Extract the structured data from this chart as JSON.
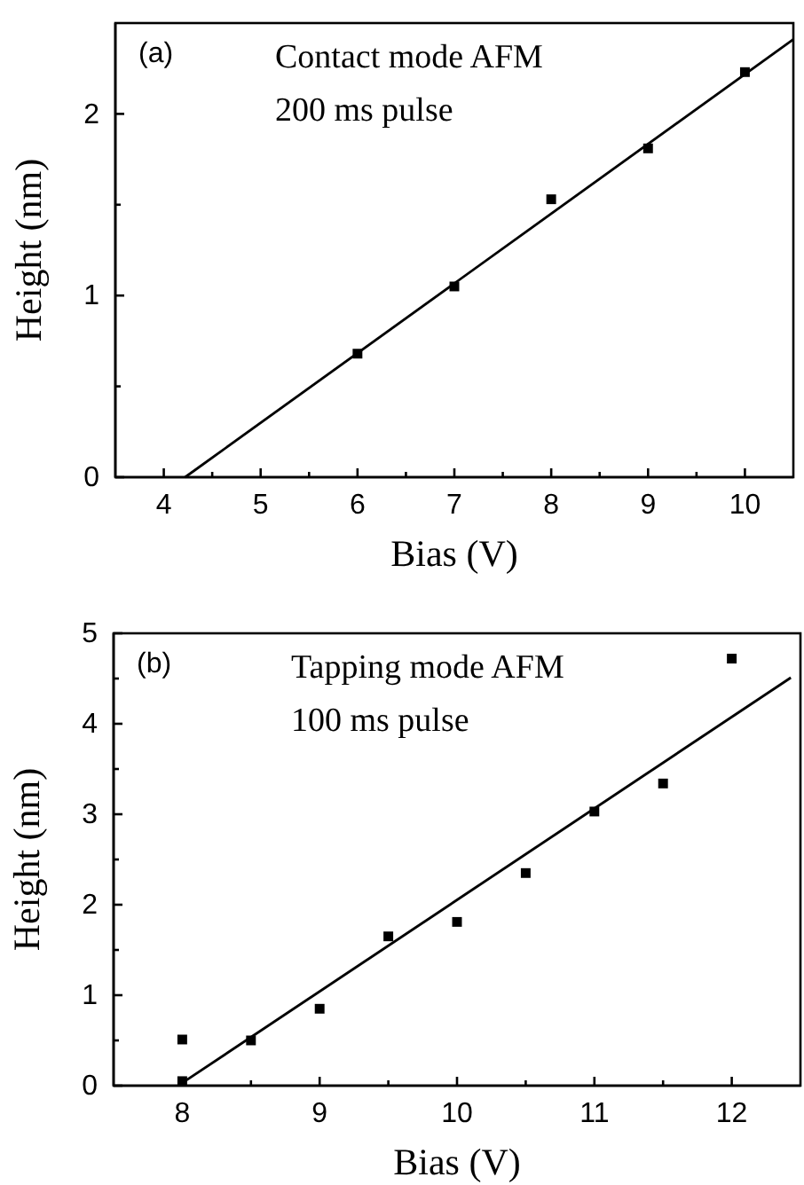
{
  "chart_data": [
    {
      "type": "scatter",
      "xlabel": "Bias (V)",
      "ylabel": "Height (nm)",
      "annotations": [
        "(a)",
        "Contact mode AFM",
        "200 ms pulse"
      ],
      "xlim": [
        3.5,
        10.5
      ],
      "ylim": [
        0,
        2.5
      ],
      "xticks": [
        4,
        {
          "value": 4.5,
          "label": null
        },
        5,
        {
          "value": 5.5,
          "label": null
        },
        6,
        {
          "value": 6.5,
          "label": null
        },
        7,
        {
          "value": 7.5,
          "label": null
        },
        8,
        {
          "value": 8.5,
          "label": null
        },
        9,
        {
          "value": 9.5,
          "label": null
        },
        10
      ],
      "yticks": [
        0,
        {
          "value": 0.5,
          "label": null
        },
        1,
        {
          "value": 1.5,
          "label": null
        },
        2
      ],
      "series": [
        {
          "marker": "square",
          "color": "#000000",
          "x": [
            6,
            7,
            8,
            9,
            10
          ],
          "values": [
            0.68,
            1.05,
            1.53,
            1.81,
            2.23
          ]
        },
        {
          "type": "line",
          "color": "#000000",
          "x": [
            4.22,
            10.5
          ],
          "values": [
            0,
            2.41
          ]
        }
      ]
    },
    {
      "type": "scatter",
      "xlabel": "Bias (V)",
      "ylabel": "Height (nm)",
      "annotations": [
        "(b)",
        "Tapping mode AFM",
        "100 ms pulse"
      ],
      "xlim": [
        7.5,
        12.5
      ],
      "ylim": [
        0,
        5
      ],
      "xticks": [
        8,
        {
          "value": 8.5,
          "label": null
        },
        9,
        {
          "value": 9.5,
          "label": null
        },
        10,
        {
          "value": 10.5,
          "label": null
        },
        11,
        {
          "value": 11.5,
          "label": null
        },
        12
      ],
      "yticks": [
        0,
        {
          "value": 0.5,
          "label": null
        },
        1,
        {
          "value": 1.5,
          "label": null
        },
        2,
        {
          "value": 2.5,
          "label": null
        },
        3,
        {
          "value": 3.5,
          "label": null
        },
        4,
        {
          "value": 4.5,
          "label": null
        },
        5
      ],
      "series": [
        {
          "marker": "square",
          "color": "#000000",
          "x": [
            8,
            8,
            8.5,
            9,
            9.5,
            10,
            10.5,
            11,
            11.5,
            12
          ],
          "values": [
            0.05,
            0.51,
            0.5,
            0.85,
            1.65,
            1.81,
            2.35,
            3.03,
            3.34,
            4.72
          ]
        },
        {
          "type": "line",
          "color": "#000000",
          "x": [
            8,
            12.43
          ],
          "values": [
            0.03,
            4.51
          ]
        }
      ]
    }
  ]
}
